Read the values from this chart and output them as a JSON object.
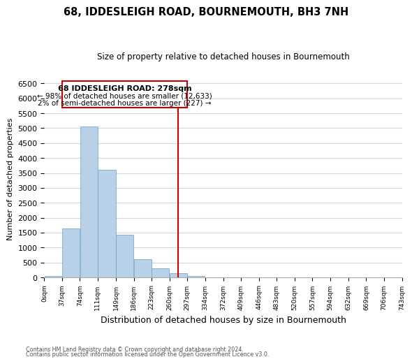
{
  "title": "68, IDDESLEIGH ROAD, BOURNEMOUTH, BH3 7NH",
  "subtitle": "Size of property relative to detached houses in Bournemouth",
  "xlabel": "Distribution of detached houses by size in Bournemouth",
  "ylabel": "Number of detached properties",
  "bar_edges": [
    0,
    37,
    74,
    111,
    149,
    186,
    223,
    260,
    297,
    334,
    372,
    409,
    446,
    483,
    520,
    557,
    594,
    632,
    669,
    706,
    743
  ],
  "bar_heights": [
    50,
    1650,
    5060,
    3600,
    1420,
    620,
    300,
    140,
    60,
    10,
    0,
    0,
    0,
    0,
    0,
    0,
    0,
    0,
    0,
    0
  ],
  "bar_color": "#b8d0e8",
  "bar_edge_color": "#6aa0c8",
  "property_line_x": 278,
  "property_line_color": "#cc0000",
  "ylim": [
    0,
    6600
  ],
  "yticks": [
    0,
    500,
    1000,
    1500,
    2000,
    2500,
    3000,
    3500,
    4000,
    4500,
    5000,
    5500,
    6000,
    6500
  ],
  "annotation_title": "68 IDDESLEIGH ROAD: 278sqm",
  "annotation_line1": "← 98% of detached houses are smaller (12,633)",
  "annotation_line2": "2% of semi-detached houses are larger (227) →",
  "annotation_box_color": "#ffffff",
  "annotation_box_edge": "#cc0000",
  "footer_line1": "Contains HM Land Registry data © Crown copyright and database right 2024.",
  "footer_line2": "Contains public sector information licensed under the Open Government Licence v3.0.",
  "background_color": "#ffffff",
  "grid_color": "#d0d8e8"
}
